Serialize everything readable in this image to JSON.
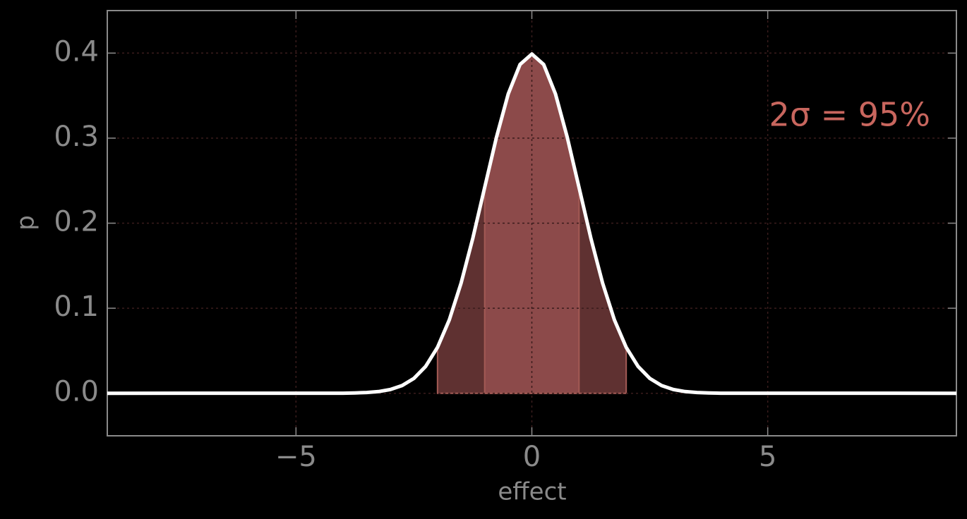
{
  "chart_data": {
    "type": "line",
    "xlabel": "effect",
    "ylabel": "p",
    "annotation": "2σ = 95%",
    "annotation_color": "#c8665e",
    "x": [
      -9,
      -4,
      -3.75,
      -3.5,
      -3.25,
      -3,
      -2.75,
      -2.5,
      -2.25,
      -2,
      -1.75,
      -1.5,
      -1.25,
      -1,
      -0.75,
      -0.5,
      -0.25,
      0,
      0.25,
      0.5,
      0.75,
      1,
      1.25,
      1.5,
      1.75,
      2,
      2.25,
      2.5,
      2.75,
      3,
      3.25,
      3.5,
      3.75,
      4,
      9
    ],
    "series": [
      {
        "color": "#ffffff",
        "values": [
          0,
          0.0001,
          0.0004,
          0.0009,
          0.002,
          0.0044,
          0.0091,
          0.0175,
          0.0317,
          0.054,
          0.0863,
          0.1295,
          0.1826,
          0.242,
          0.3011,
          0.3521,
          0.3867,
          0.3989,
          0.3867,
          0.3521,
          0.3011,
          0.242,
          0.1826,
          0.1295,
          0.0863,
          0.054,
          0.0317,
          0.0175,
          0.0091,
          0.0044,
          0.002,
          0.0009,
          0.0004,
          0.0001,
          0
        ]
      }
    ],
    "bands": [
      {
        "x0": -2,
        "x1": 2,
        "color": "#5f3131"
      },
      {
        "x0": -1,
        "x1": 1,
        "color": "#8c4a4a"
      }
    ],
    "xlim": [
      -9,
      9
    ],
    "ylim": [
      -0.05,
      0.45
    ],
    "xticks": [
      {
        "value": -5,
        "label": "−5"
      },
      0,
      5
    ],
    "yticks": [
      {
        "value": 0,
        "label": "0.0"
      },
      0.1,
      0.2,
      0.3,
      0.4
    ],
    "grid": true
  }
}
